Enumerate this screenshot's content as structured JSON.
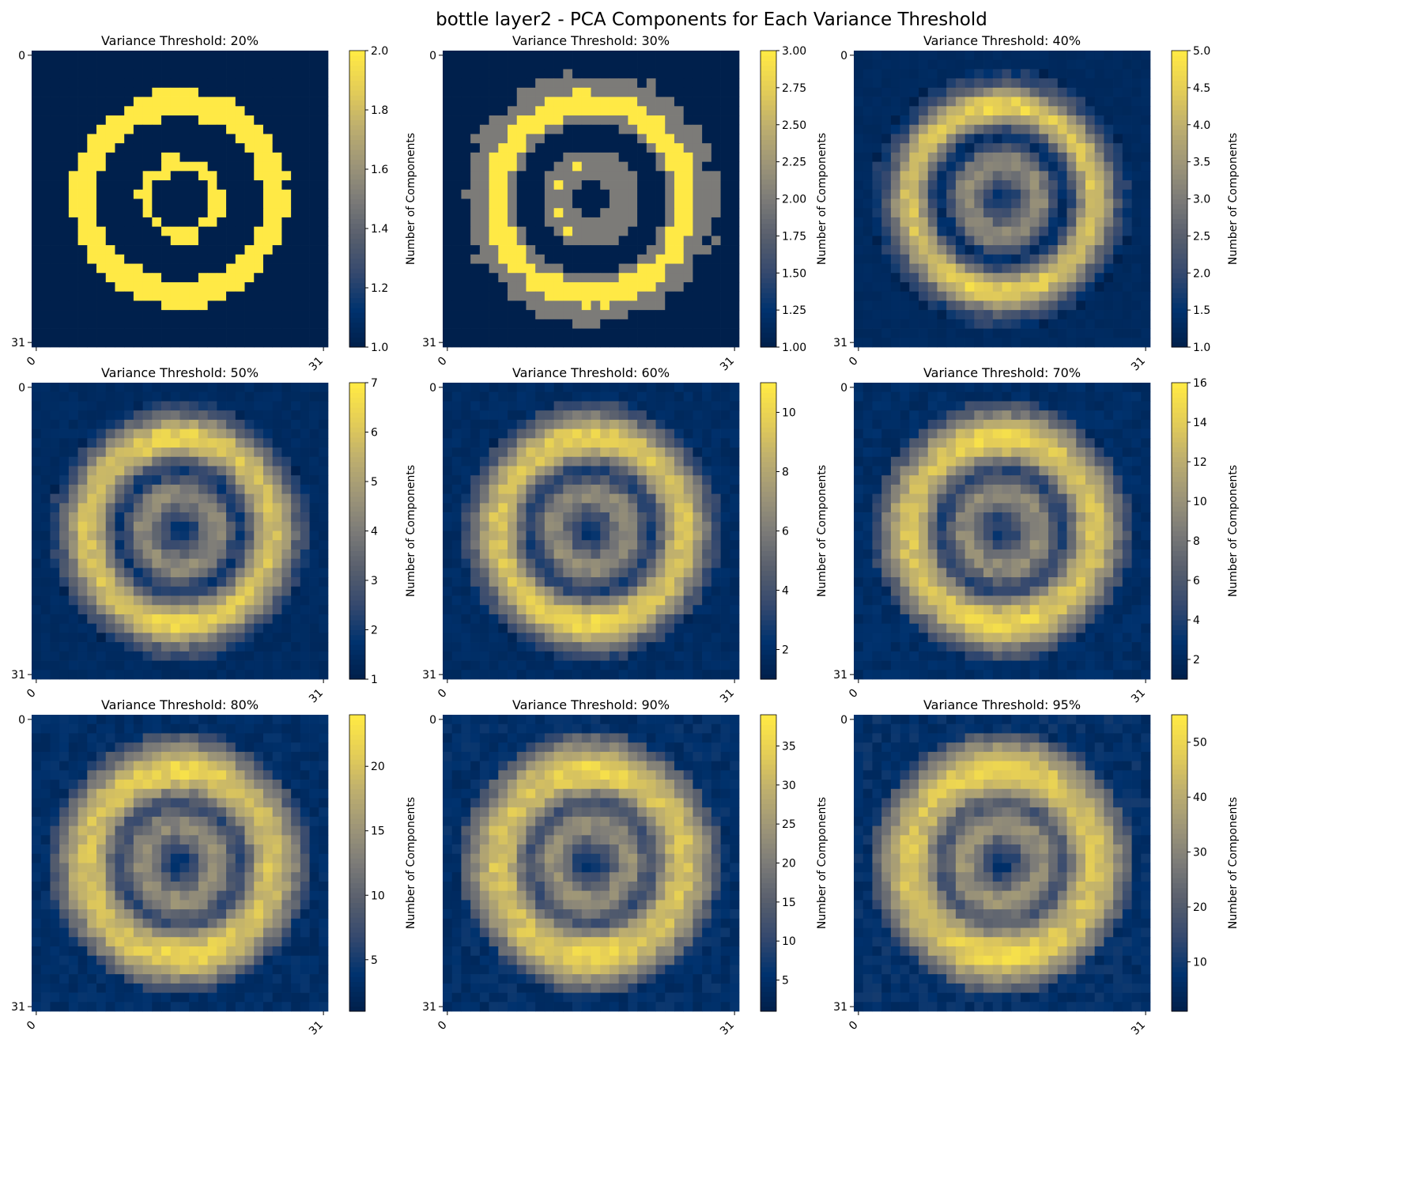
{
  "figure": {
    "title": "bottle layer2 - PCA Components for Each Variance Threshold"
  },
  "colormap": {
    "name": "cividis",
    "low": "#00204c",
    "mid": "#7c7b78",
    "high": "#ffe945"
  },
  "chart_data": [
    {
      "type": "heatmap",
      "title": "Variance Threshold: 20%",
      "pattern": "binary",
      "ring_radius": 10.3,
      "ring_width": 1.7,
      "grid_size": 32,
      "x_tick_labels": [
        "0",
        "31"
      ],
      "y_tick_labels": [
        "0",
        "31"
      ],
      "value_range": [
        1,
        2
      ],
      "colorbar": {
        "label": "Number of Components",
        "ticks": [
          1.0,
          1.2,
          1.4,
          1.6,
          1.8,
          2.0
        ],
        "tick_labels": [
          "1.0",
          "1.2",
          "1.4",
          "1.6",
          "1.8",
          "2.0"
        ]
      }
    },
    {
      "type": "heatmap",
      "title": "Variance Threshold: 30%",
      "pattern": "ternary",
      "ring_radius": 10.3,
      "ring_width": 1.8,
      "grid_size": 32,
      "x_tick_labels": [
        "0",
        "31"
      ],
      "y_tick_labels": [
        "0",
        "31"
      ],
      "value_range": [
        1,
        3
      ],
      "colorbar": {
        "label": "Number of Components",
        "ticks": [
          1.0,
          1.25,
          1.5,
          1.75,
          2.0,
          2.25,
          2.5,
          2.75,
          3.0
        ],
        "tick_labels": [
          "1.00",
          "1.25",
          "1.50",
          "1.75",
          "2.00",
          "2.25",
          "2.50",
          "2.75",
          "3.00"
        ]
      }
    },
    {
      "type": "heatmap",
      "title": "Variance Threshold: 40%",
      "pattern": "smooth",
      "ring_radius": 10.0,
      "ring_width": 2.2,
      "grid_size": 32,
      "x_tick_labels": [
        "0",
        "31"
      ],
      "y_tick_labels": [
        "0",
        "31"
      ],
      "value_range": [
        1,
        5
      ],
      "colorbar": {
        "label": "Number of Components",
        "ticks": [
          1.0,
          1.5,
          2.0,
          2.5,
          3.0,
          3.5,
          4.0,
          4.5,
          5.0
        ],
        "tick_labels": [
          "1.0",
          "1.5",
          "2.0",
          "2.5",
          "3.0",
          "3.5",
          "4.0",
          "4.5",
          "5.0"
        ]
      }
    },
    {
      "type": "heatmap",
      "title": "Variance Threshold: 50%",
      "pattern": "smooth",
      "ring_radius": 10.0,
      "ring_width": 2.6,
      "grid_size": 32,
      "x_tick_labels": [
        "0",
        "31"
      ],
      "y_tick_labels": [
        "0",
        "31"
      ],
      "value_range": [
        1,
        7
      ],
      "colorbar": {
        "label": "Number of Components",
        "ticks": [
          1,
          2,
          3,
          4,
          5,
          6,
          7
        ],
        "tick_labels": [
          "1",
          "2",
          "3",
          "4",
          "5",
          "6",
          "7"
        ]
      }
    },
    {
      "type": "heatmap",
      "title": "Variance Threshold: 60%",
      "pattern": "smooth",
      "ring_radius": 10.0,
      "ring_width": 2.8,
      "grid_size": 32,
      "x_tick_labels": [
        "0",
        "31"
      ],
      "y_tick_labels": [
        "0",
        "31"
      ],
      "value_range": [
        1,
        11
      ],
      "colorbar": {
        "label": "Number of Components",
        "ticks": [
          2,
          4,
          6,
          8,
          10
        ],
        "tick_labels": [
          "2",
          "4",
          "6",
          "8",
          "10"
        ]
      }
    },
    {
      "type": "heatmap",
      "title": "Variance Threshold: 70%",
      "pattern": "smooth",
      "ring_radius": 10.0,
      "ring_width": 3.0,
      "grid_size": 32,
      "x_tick_labels": [
        "0",
        "31"
      ],
      "y_tick_labels": [
        "0",
        "31"
      ],
      "value_range": [
        1,
        16
      ],
      "colorbar": {
        "label": "Number of Components",
        "ticks": [
          2,
          4,
          6,
          8,
          10,
          12,
          14,
          16
        ],
        "tick_labels": [
          "2",
          "4",
          "6",
          "8",
          "10",
          "12",
          "14",
          "16"
        ]
      }
    },
    {
      "type": "heatmap",
      "title": "Variance Threshold: 80%",
      "pattern": "smooth",
      "ring_radius": 10.0,
      "ring_width": 3.2,
      "grid_size": 32,
      "x_tick_labels": [
        "0",
        "31"
      ],
      "y_tick_labels": [
        "0",
        "31"
      ],
      "value_range": [
        1,
        24
      ],
      "colorbar": {
        "label": "Number of Components",
        "ticks": [
          5,
          10,
          15,
          20
        ],
        "tick_labels": [
          "5",
          "10",
          "15",
          "20"
        ]
      }
    },
    {
      "type": "heatmap",
      "title": "Variance Threshold: 90%",
      "pattern": "smooth",
      "ring_radius": 10.0,
      "ring_width": 3.4,
      "grid_size": 32,
      "x_tick_labels": [
        "0",
        "31"
      ],
      "y_tick_labels": [
        "0",
        "31"
      ],
      "value_range": [
        1,
        39
      ],
      "colorbar": {
        "label": "Number of Components",
        "ticks": [
          5,
          10,
          15,
          20,
          25,
          30,
          35
        ],
        "tick_labels": [
          "5",
          "10",
          "15",
          "20",
          "25",
          "30",
          "35"
        ]
      }
    },
    {
      "type": "heatmap",
      "title": "Variance Threshold: 95%",
      "pattern": "smooth",
      "ring_radius": 10.0,
      "ring_width": 3.6,
      "grid_size": 32,
      "x_tick_labels": [
        "0",
        "31"
      ],
      "y_tick_labels": [
        "0",
        "31"
      ],
      "value_range": [
        1,
        55
      ],
      "colorbar": {
        "label": "Number of Components",
        "ticks": [
          10,
          20,
          30,
          40,
          50
        ],
        "tick_labels": [
          "10",
          "20",
          "30",
          "40",
          "50"
        ]
      }
    }
  ]
}
